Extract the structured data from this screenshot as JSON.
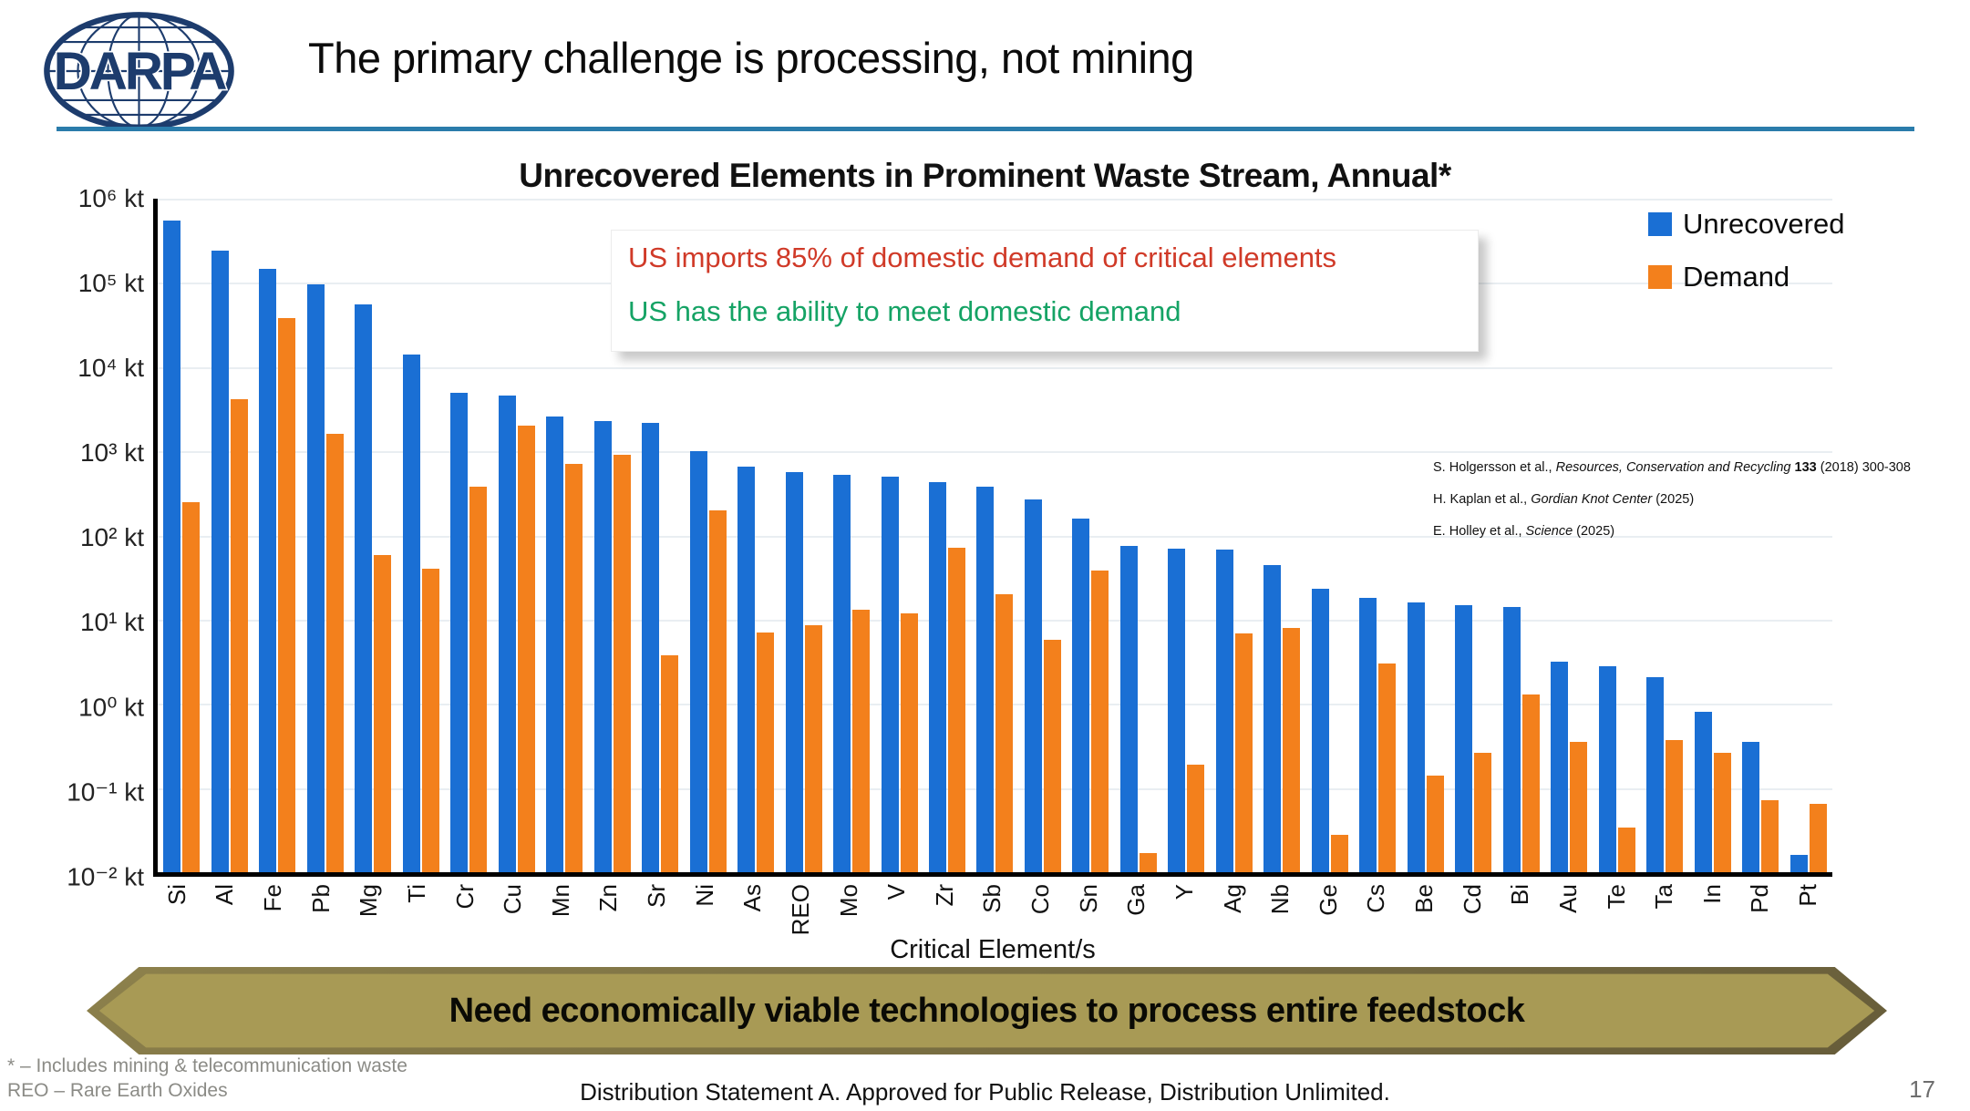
{
  "header": {
    "title": "The primary challenge is processing, not mining",
    "logo_text": "DARPA"
  },
  "callout": {
    "lines": [
      {
        "text": "US imports 85% of domestic demand of critical elements",
        "color": "#d03a28"
      },
      {
        "text": "US has the ability to meet domestic demand",
        "color": "#15a365"
      }
    ]
  },
  "citations": [
    {
      "pre": "S. Holgersson et al., ",
      "italic": "Resources, Conservation and Recycling",
      "bold": " 133",
      "post": " (2018) 300-308"
    },
    {
      "pre": "H. Kaplan et al., ",
      "italic": "Gordian Knot Center",
      "bold": "",
      "post": " (2025)"
    },
    {
      "pre": "E. Holley et al., ",
      "italic": "Science",
      "bold": "",
      "post": " (2025)"
    }
  ],
  "banner": {
    "text": "Need economically viable technologies to process entire feedstock",
    "fill": "#a89a55"
  },
  "footnotes": {
    "line1": "* – Includes mining & telecommunication waste",
    "line2": "REO – Rare Earth Oxides"
  },
  "footer": {
    "distribution": "Distribution Statement A. Approved for Public Release, Distribution Unlimited.",
    "page": "17"
  },
  "chart_data": {
    "type": "bar",
    "scale": "log",
    "unit": "kt",
    "title": "Unrecovered Elements in Prominent Waste Stream, Annual*",
    "xlabel": "Critical Element/s",
    "ylim": [
      0.01,
      1000000
    ],
    "grid": true,
    "legend_position": "top-right",
    "ytick_labels": [
      "10⁶ kt",
      "10⁵ kt",
      "10⁴ kt",
      "10³ kt",
      "10² kt",
      "10¹ kt",
      "10⁰ kt",
      "10⁻¹ kt",
      "10⁻² kt"
    ],
    "categories": [
      "Si",
      "Al",
      "Fe",
      "Pb",
      "Mg",
      "Ti",
      "Cr",
      "Cu",
      "Mn",
      "Zn",
      "Sr",
      "Ni",
      "As",
      "REO",
      "Mo",
      "V",
      "Zr",
      "Sb",
      "Co",
      "Sn",
      "Ga",
      "Y",
      "Ag",
      "Nb",
      "Ge",
      "Cs",
      "Be",
      "Cd",
      "Bi",
      "Au",
      "Te",
      "Ta",
      "In",
      "Pd",
      "Pt"
    ],
    "series": [
      {
        "name": "Unrecovered",
        "color": "#1a6fd4",
        "values": [
          550000,
          240000,
          145000,
          95000,
          55000,
          14000,
          5000,
          4600,
          2600,
          2300,
          2200,
          1000,
          650,
          560,
          530,
          500,
          430,
          380,
          270,
          160,
          75,
          70,
          68,
          45,
          23,
          18,
          16,
          15,
          14,
          3.2,
          2.8,
          2.1,
          0.8,
          0.35,
          0.016
        ]
      },
      {
        "name": "Demand",
        "color": "#f3801c",
        "values": [
          250,
          4200,
          38000,
          1600,
          58,
          40,
          380,
          2000,
          700,
          900,
          3.8,
          200,
          7,
          8.5,
          13,
          12,
          72,
          20,
          5.8,
          38,
          0.017,
          0.19,
          6.8,
          8,
          0.028,
          3,
          0.14,
          0.26,
          1.3,
          0.35,
          0.034,
          0.37,
          0.26,
          0.072,
          0.065
        ]
      }
    ]
  }
}
